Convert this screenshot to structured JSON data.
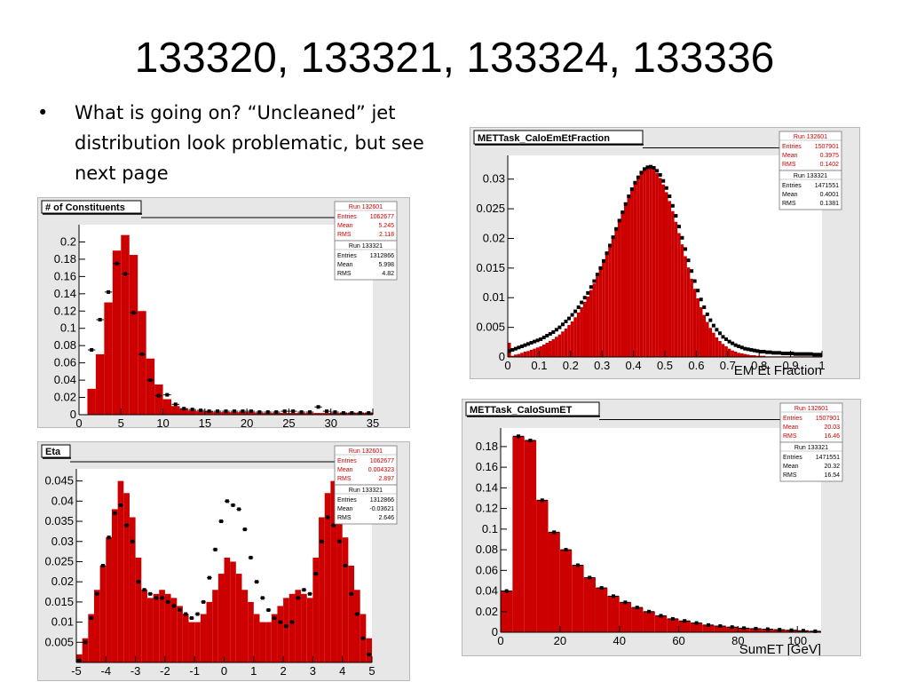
{
  "slide": {
    "title": "133320, 133321, 133324, 133336",
    "bullet": "What is going on? “Uncleaned” jet distribution look problematic, but see next page"
  },
  "colors": {
    "fill": "#cc0000",
    "marker": "#000000",
    "stats_red": "#cc0000",
    "frame_bg": "#e7e7e7"
  },
  "chart_data": [
    {
      "id": "constituents",
      "type": "bar",
      "title": "# of Constituents",
      "xlabel": "",
      "xlim": [
        0,
        35
      ],
      "ylim": [
        0,
        0.22
      ],
      "x_ticks": [
        "0",
        "5",
        "10",
        "15",
        "20",
        "25",
        "30",
        "35"
      ],
      "x_tick_values": [
        0,
        5,
        10,
        15,
        20,
        25,
        30,
        35
      ],
      "y_ticks": [
        "0",
        "0.02",
        "0.04",
        "0.06",
        "0.08",
        "0.1",
        "0.12",
        "0.14",
        "0.16",
        "0.18",
        "0.2"
      ],
      "y_tick_values": [
        0,
        0.02,
        0.04,
        0.06,
        0.08,
        0.1,
        0.12,
        0.14,
        0.16,
        0.18,
        0.2
      ],
      "bin_start": 1,
      "bin_width": 1,
      "fill_values": [
        0.03,
        0.07,
        0.13,
        0.19,
        0.208,
        0.185,
        0.12,
        0.065,
        0.035,
        0.018,
        0.01,
        0.007,
        0.005,
        0.004,
        0.004,
        0.003,
        0.003,
        0.003,
        0.003,
        0.003,
        0.002,
        0.002,
        0.002,
        0.002,
        0.002,
        0.002,
        0.002,
        0.002,
        0.002,
        0.002,
        0.002,
        0.002,
        0.002,
        0.002
      ],
      "marker_values": [
        0.075,
        0.11,
        0.142,
        0.175,
        0.163,
        0.118,
        0.07,
        0.04,
        0.022,
        0.023,
        0.012,
        0.007,
        0.006,
        0.005,
        0.004,
        0.004,
        0.004,
        0.004,
        0.004,
        0.004,
        0.003,
        0.003,
        0.003,
        0.004,
        0.004,
        0.003,
        0.003,
        0.009,
        0.004,
        0.003,
        0.002,
        0.002,
        0.002,
        0.002
      ],
      "stats": [
        {
          "run": "Run 132601",
          "entries": "1062677",
          "mean": "5.245",
          "rms": "2.118",
          "red": true
        },
        {
          "run": "Run 133321",
          "entries": "1312866",
          "mean": "5.998",
          "rms": "4.82",
          "red": false
        }
      ]
    },
    {
      "id": "eta",
      "type": "bar",
      "title": "Eta",
      "xlabel": "",
      "xlim": [
        -5,
        5
      ],
      "ylim": [
        0,
        0.048
      ],
      "x_ticks": [
        "-5",
        "-4",
        "-3",
        "-2",
        "-1",
        "0",
        "1",
        "2",
        "3",
        "4",
        "5"
      ],
      "x_tick_values": [
        -5,
        -4,
        -3,
        -2,
        -1,
        0,
        1,
        2,
        3,
        4,
        5
      ],
      "y_ticks": [
        "0.005",
        "0.01",
        "0.015",
        "0.02",
        "0.025",
        "0.03",
        "0.035",
        "0.04",
        "0.045"
      ],
      "y_tick_values": [
        0.005,
        0.01,
        0.015,
        0.02,
        0.025,
        0.03,
        0.035,
        0.04,
        0.045
      ],
      "bin_start": -5,
      "bin_width": 0.2,
      "fill_values": [
        0.002,
        0.006,
        0.012,
        0.018,
        0.024,
        0.031,
        0.038,
        0.045,
        0.042,
        0.036,
        0.026,
        0.018,
        0.016,
        0.017,
        0.018,
        0.017,
        0.016,
        0.014,
        0.012,
        0.01,
        0.01,
        0.012,
        0.015,
        0.018,
        0.022,
        0.026,
        0.025,
        0.022,
        0.018,
        0.015,
        0.012,
        0.01,
        0.01,
        0.012,
        0.014,
        0.016,
        0.017,
        0.018,
        0.017,
        0.016,
        0.026,
        0.036,
        0.042,
        0.045,
        0.038,
        0.031,
        0.024,
        0.018,
        0.012,
        0.006
      ],
      "marker_values": [
        0.0005,
        0.005,
        0.011,
        0.017,
        0.024,
        0.031,
        0.037,
        0.039,
        0.034,
        0.03,
        0.02,
        0.018,
        0.017,
        0.016,
        0.016,
        0.015,
        0.014,
        0.013,
        0.012,
        0.011,
        0.012,
        0.015,
        0.021,
        0.028,
        0.035,
        0.04,
        0.039,
        0.038,
        0.033,
        0.026,
        0.02,
        0.016,
        0.013,
        0.011,
        0.01,
        0.009,
        0.01,
        0.016,
        0.018,
        0.017,
        0.022,
        0.03,
        0.036,
        0.034,
        0.03,
        0.024,
        0.017,
        0.012,
        0.006,
        0.002
      ],
      "stats": [
        {
          "run": "Run 132601",
          "entries": "1062677",
          "mean": "0.004323",
          "rms": "2.897",
          "red": true
        },
        {
          "run": "Run 133321",
          "entries": "1312866",
          "mean": "-0.03621",
          "rms": "2.646",
          "red": false
        }
      ]
    },
    {
      "id": "emfraction",
      "type": "bar",
      "title": "METTask_CaloEmEtFraction",
      "xlabel": "EM Et Fraction",
      "xlim": [
        0,
        1
      ],
      "ylim": [
        0,
        0.034
      ],
      "x_ticks": [
        "0",
        "0.1",
        "0.2",
        "0.3",
        "0.4",
        "0.5",
        "0.6",
        "0.7",
        "0.8",
        "0.9",
        "1"
      ],
      "x_tick_values": [
        0,
        0.1,
        0.2,
        0.3,
        0.4,
        0.5,
        0.6,
        0.7,
        0.8,
        0.9,
        1
      ],
      "y_ticks": [
        "0",
        "0.005",
        "0.01",
        "0.015",
        "0.02",
        "0.025",
        "0.03"
      ],
      "y_tick_values": [
        0,
        0.005,
        0.01,
        0.015,
        0.02,
        0.025,
        0.03
      ],
      "bin_start": 0,
      "bin_width": 0.01,
      "fill_values": [
        0.0024,
        0.0002,
        0.0004,
        0.0005,
        0.0007,
        0.0009,
        0.001,
        0.0012,
        0.0014,
        0.0016,
        0.0018,
        0.0021,
        0.0024,
        0.0027,
        0.003,
        0.0034,
        0.0038,
        0.0043,
        0.0048,
        0.0054,
        0.006,
        0.0067,
        0.0075,
        0.0084,
        0.0093,
        0.0102,
        0.0113,
        0.0124,
        0.0136,
        0.0148,
        0.0161,
        0.0174,
        0.0188,
        0.0202,
        0.0216,
        0.023,
        0.0244,
        0.0258,
        0.0271,
        0.0283,
        0.0294,
        0.0303,
        0.0311,
        0.0316,
        0.0319,
        0.0319,
        0.0316,
        0.031,
        0.0302,
        0.0291,
        0.0278,
        0.0263,
        0.0246,
        0.0228,
        0.0209,
        0.019,
        0.017,
        0.0151,
        0.0132,
        0.0115,
        0.0099,
        0.0084,
        0.0071,
        0.0059,
        0.0049,
        0.0041,
        0.0033,
        0.0027,
        0.0022,
        0.0018,
        0.0014,
        0.0011,
        0.0009,
        0.0007,
        0.0006,
        0.0005,
        0.0004,
        0.0003,
        0.0003,
        0.0002,
        0.0002,
        0.0002,
        0.0001,
        0.0001,
        0.0001,
        0.0001,
        0.0001,
        0.0001,
        0.0001,
        0.0001,
        0.0001,
        0.0001,
        0.0001,
        0.0001,
        0.0001,
        0.0001,
        0.0001,
        0.0001,
        0.0001,
        0.0001
      ],
      "marker_values": [
        0.001,
        0.0012,
        0.0014,
        0.0016,
        0.0018,
        0.002,
        0.0022,
        0.0024,
        0.0026,
        0.0028,
        0.003,
        0.0033,
        0.0036,
        0.0039,
        0.0042,
        0.0046,
        0.005,
        0.0055,
        0.006,
        0.0065,
        0.0071,
        0.0077,
        0.0084,
        0.0092,
        0.01,
        0.0108,
        0.0118,
        0.0128,
        0.0139,
        0.015,
        0.0162,
        0.0175,
        0.0188,
        0.0202,
        0.0216,
        0.023,
        0.0244,
        0.0258,
        0.0271,
        0.0283,
        0.0294,
        0.0303,
        0.0311,
        0.0317,
        0.032,
        0.0321,
        0.0319,
        0.0314,
        0.0307,
        0.0297,
        0.0285,
        0.0271,
        0.0255,
        0.0238,
        0.022,
        0.0201,
        0.0182,
        0.0163,
        0.0145,
        0.0128,
        0.0112,
        0.0097,
        0.0084,
        0.0072,
        0.0062,
        0.0053,
        0.0046,
        0.004,
        0.0034,
        0.003,
        0.0026,
        0.0023,
        0.002,
        0.0018,
        0.0016,
        0.0014,
        0.0013,
        0.0012,
        0.0011,
        0.001,
        0.0009,
        0.0009,
        0.0008,
        0.0008,
        0.0007,
        0.0007,
        0.0007,
        0.0006,
        0.0006,
        0.0006,
        0.0006,
        0.0005,
        0.0005,
        0.0005,
        0.0005,
        0.0005,
        0.0005,
        0.0004,
        0.0004,
        0.0004
      ],
      "stats": [
        {
          "run": "Run 132601",
          "entries": "1507901",
          "mean": "0.3975",
          "rms": "0.1402",
          "red": true
        },
        {
          "run": "Run 133321",
          "entries": "1471551",
          "mean": "0.4001",
          "rms": "0.1381",
          "red": false
        }
      ]
    },
    {
      "id": "sumet",
      "type": "bar",
      "title": "METTask_CaloSumET",
      "xlabel": "SumET [GeV]",
      "xlim": [
        0,
        108
      ],
      "ylim": [
        0,
        0.198
      ],
      "x_ticks": [
        "0",
        "20",
        "40",
        "60",
        "80",
        "100"
      ],
      "x_tick_values": [
        0,
        20,
        40,
        60,
        80,
        100
      ],
      "y_ticks": [
        "0",
        "0.02",
        "0.04",
        "0.06",
        "0.08",
        "0.1",
        "0.12",
        "0.14",
        "0.16",
        "0.18"
      ],
      "y_tick_values": [
        0,
        0.02,
        0.04,
        0.06,
        0.08,
        0.1,
        0.12,
        0.14,
        0.16,
        0.18
      ],
      "bin_start": 0,
      "bin_width": 4,
      "fill_values": [
        0.04,
        0.19,
        0.186,
        0.128,
        0.097,
        0.08,
        0.065,
        0.053,
        0.043,
        0.035,
        0.029,
        0.024,
        0.02,
        0.016,
        0.013,
        0.011,
        0.009,
        0.007,
        0.006,
        0.005,
        0.004,
        0.0035,
        0.003,
        0.0025,
        0.002,
        0.0015,
        0.001
      ],
      "marker_values": [
        0.04,
        0.19,
        0.186,
        0.128,
        0.097,
        0.08,
        0.065,
        0.053,
        0.043,
        0.035,
        0.029,
        0.024,
        0.02,
        0.016,
        0.013,
        0.011,
        0.009,
        0.007,
        0.006,
        0.005,
        0.004,
        0.0035,
        0.003,
        0.0025,
        0.002,
        0.0015,
        0.001
      ],
      "stats": [
        {
          "run": "Run 132601",
          "entries": "1507901",
          "mean": "20.03",
          "rms": "16.46",
          "red": true
        },
        {
          "run": "Run 133321",
          "entries": "1471551",
          "mean": "20.32",
          "rms": "16.54",
          "red": false
        }
      ]
    }
  ]
}
